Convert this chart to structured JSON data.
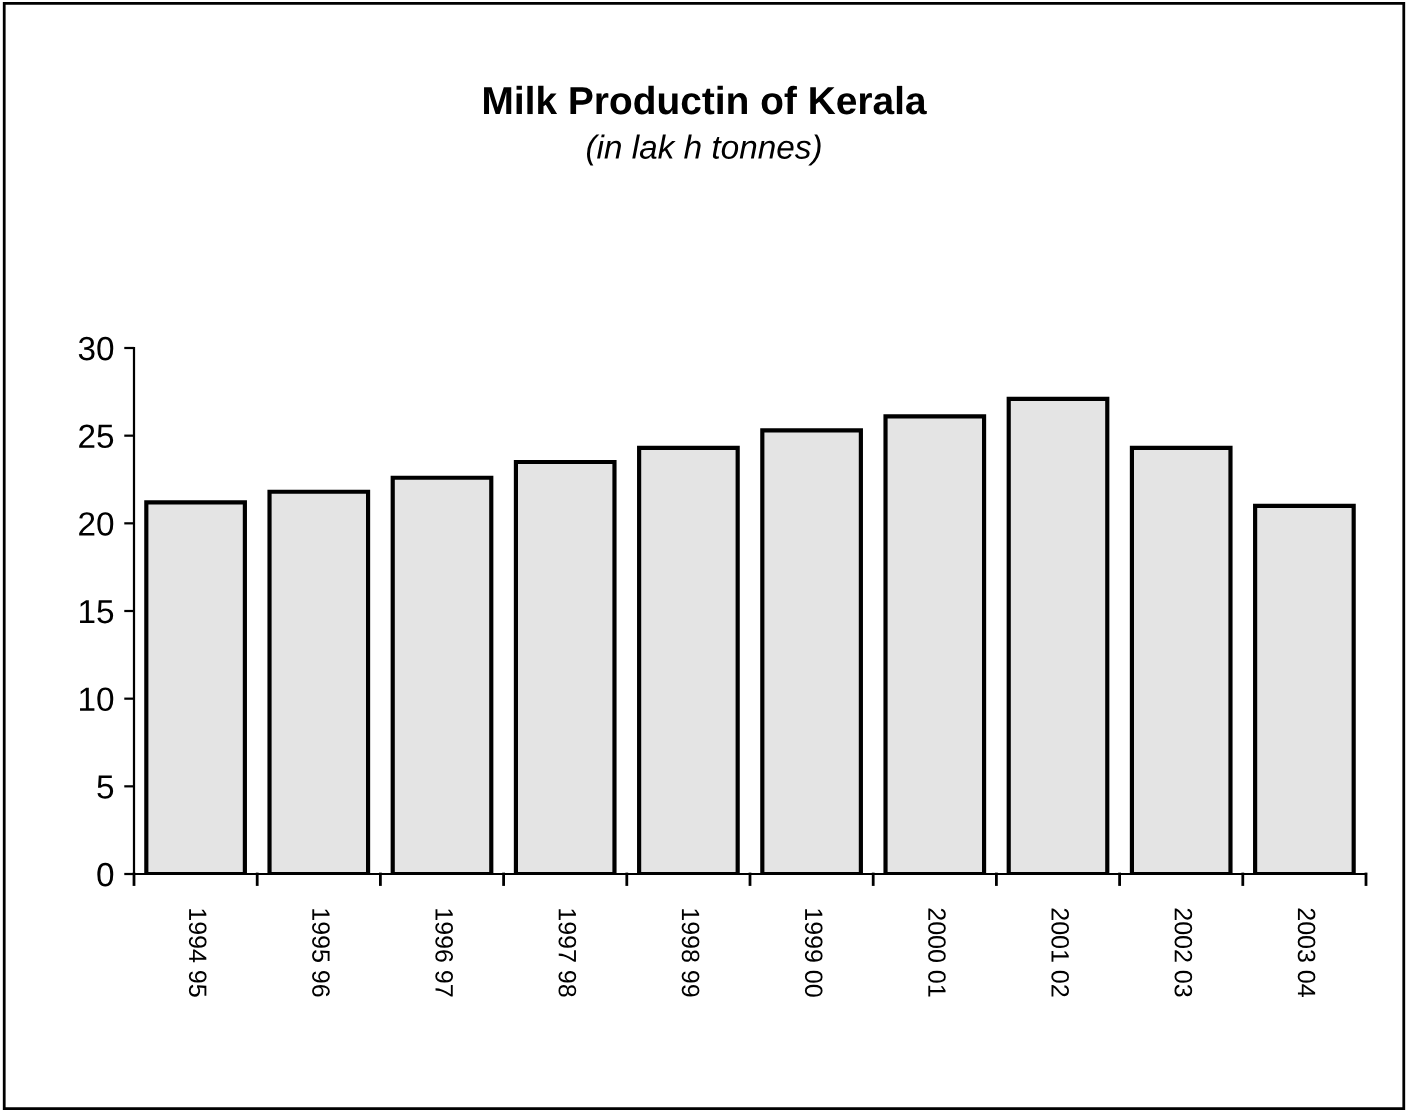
{
  "chart_data": {
    "type": "bar",
    "title": "Milk Productin of Kerala",
    "subtitle": "(in lak h tonnes)",
    "categories": [
      "1994 95",
      "1995 96",
      "1996 97",
      "1997 98",
      "1998 99",
      "1999 00",
      "2000 01",
      "2001 02",
      "2002 03",
      "2003 04"
    ],
    "values": [
      21.2,
      21.8,
      22.6,
      23.5,
      24.3,
      25.3,
      26.1,
      27.1,
      24.3,
      21.0
    ],
    "color": "#e4e4e4",
    "ylim": [
      0,
      30
    ],
    "yticks": [
      0,
      5,
      10,
      15,
      20,
      25,
      30
    ],
    "grid": false,
    "legend": false
  }
}
